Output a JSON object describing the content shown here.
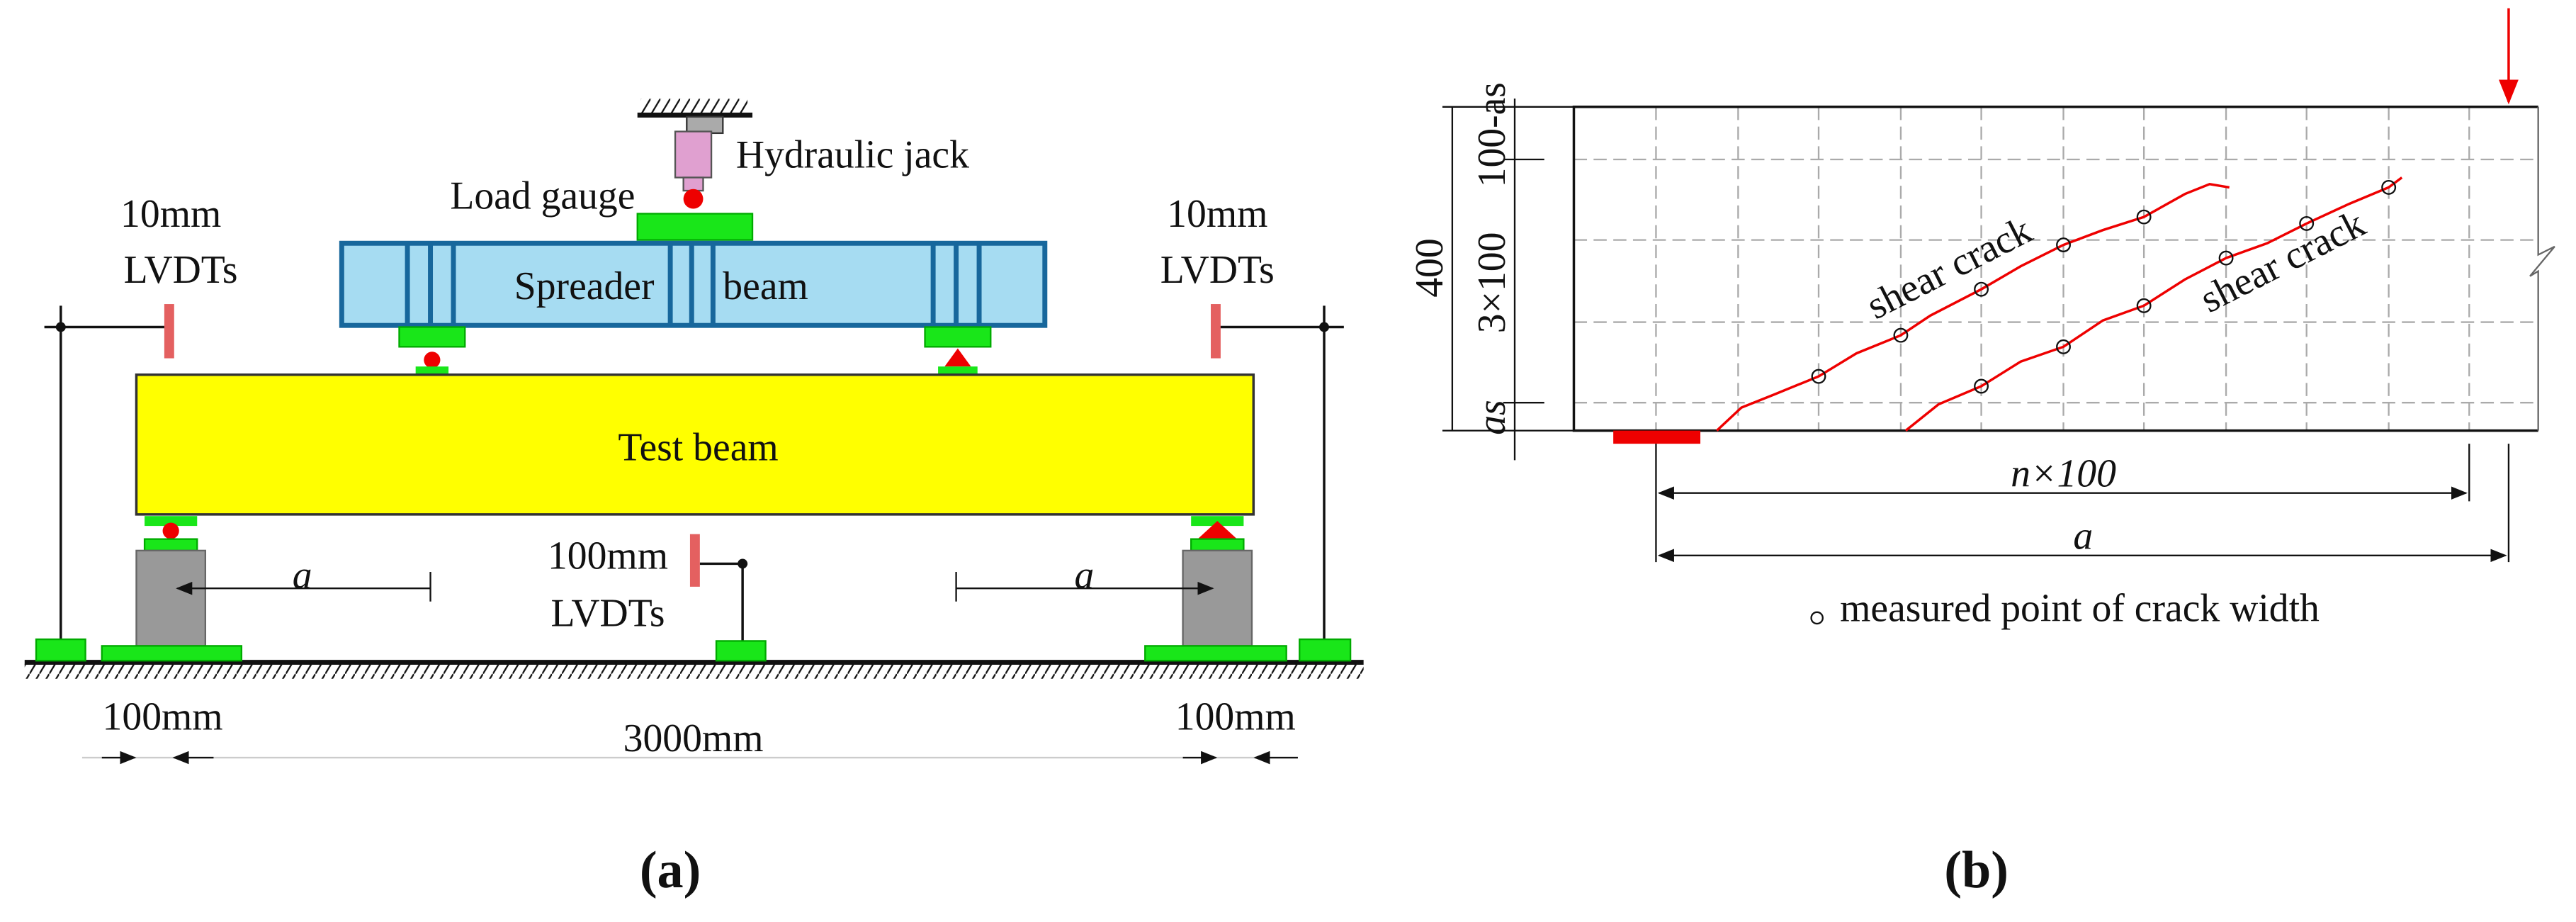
{
  "panel_a": {
    "caption": "(a)",
    "hydraulic_jack": "Hydraulic jack",
    "load_gauge": "Load gauge",
    "lvdt_left": [
      "10mm",
      "LVDTs"
    ],
    "lvdt_right": [
      "10mm",
      "LVDTs"
    ],
    "spreader": [
      "Spreader",
      "beam"
    ],
    "test_beam": "Test beam",
    "shear_span_left": "a",
    "shear_span_right": "a",
    "lvdt_mid": [
      "100mm",
      "LVDTs"
    ],
    "dims": [
      "100mm",
      "3000mm",
      "100mm"
    ]
  },
  "panel_b": {
    "caption": "(b)",
    "depth": "400",
    "top_cover": "100-as",
    "middle": "3×100",
    "bottom_cover": "as",
    "cracks": [
      "shear crack",
      "shear crack"
    ],
    "grid_span": "n×100",
    "shear_span": "a",
    "legend": "measured point of crack width"
  }
}
